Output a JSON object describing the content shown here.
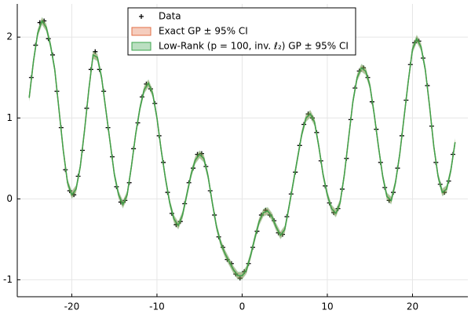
{
  "chart_data": {
    "type": "line",
    "xlim": [
      -26.4,
      26.5
    ],
    "ylim": [
      -1.21,
      2.41
    ],
    "xticks": [
      -20,
      -10,
      0,
      10,
      20
    ],
    "yticks": [
      -1,
      0,
      1,
      2
    ],
    "grid": true,
    "legend": "top",
    "x": [
      -25,
      -24.5,
      -24,
      -23.5,
      -23,
      -22.5,
      -22,
      -21.5,
      -21,
      -20.5,
      -20,
      -19.5,
      -19,
      -18.5,
      -18,
      -17.5,
      -17,
      -16.5,
      -16,
      -15.5,
      -15,
      -14.5,
      -14,
      -13.5,
      -13,
      -12.5,
      -12,
      -11.5,
      -11,
      -10.5,
      -10,
      -9.5,
      -9,
      -8.5,
      -8,
      -7.5,
      -7,
      -6.5,
      -6,
      -5.5,
      -5,
      -4.5,
      -4,
      -3.5,
      -3,
      -2.5,
      -2,
      -1.5,
      -1,
      -0.5,
      0,
      0.5,
      1,
      1.5,
      2,
      2.5,
      3,
      3.5,
      4,
      4.5,
      5,
      5.5,
      6,
      6.5,
      7,
      7.5,
      8,
      8.5,
      9,
      9.5,
      10,
      10.5,
      11,
      11.5,
      12,
      12.5,
      13,
      13.5,
      14,
      14.5,
      15,
      15.5,
      16,
      16.5,
      17,
      17.5,
      18,
      18.5,
      19,
      19.5,
      20,
      20.5,
      21,
      21.5,
      22,
      22.5,
      23,
      23.5,
      24,
      24.5,
      25
    ],
    "series": [
      {
        "name": "Data",
        "kind": "scatter",
        "color": "#000000",
        "x": [
          -24.75,
          -24.25,
          -23.75,
          -23.25,
          -22.75,
          -22.25,
          -21.75,
          -21.25,
          -20.75,
          -20.25,
          -19.75,
          -19.25,
          -18.75,
          -18.25,
          -17.75,
          -17.25,
          -16.75,
          -16.25,
          -15.75,
          -15.25,
          -14.75,
          -14.25,
          -13.75,
          -13.25,
          -12.75,
          -12.25,
          -11.75,
          -11.25,
          -10.75,
          -10.25,
          -9.75,
          -9.25,
          -8.75,
          -8.25,
          -7.75,
          -7.25,
          -6.75,
          -6.25,
          -5.75,
          -5.25,
          -4.75,
          -4.25,
          -3.75,
          -3.25,
          -2.75,
          -2.25,
          -1.75,
          -1.25,
          -0.75,
          -0.25,
          0.25,
          0.75,
          1.25,
          1.75,
          2.25,
          2.75,
          3.25,
          3.75,
          4.25,
          4.75,
          5.25,
          5.75,
          6.25,
          6.75,
          7.25,
          7.75,
          8.25,
          8.75,
          9.25,
          9.75,
          10.25,
          10.75,
          11.25,
          11.75,
          12.25,
          12.75,
          13.25,
          13.75,
          14.25,
          14.75,
          15.25,
          15.75,
          16.25,
          16.75,
          17.25,
          17.75,
          18.25,
          18.75,
          19.25,
          19.75,
          20.25,
          20.75,
          21.25,
          21.75,
          22.25,
          22.75,
          23.25,
          23.75,
          24.25,
          24.75
        ],
        "values": [
          1.5,
          1.9,
          2.18,
          2.2,
          1.98,
          1.78,
          1.33,
          0.88,
          0.36,
          0.1,
          0.05,
          0.28,
          0.6,
          1.12,
          1.6,
          1.82,
          1.6,
          1.33,
          0.88,
          0.52,
          0.15,
          -0.04,
          -0.02,
          0.2,
          0.62,
          0.94,
          1.26,
          1.42,
          1.36,
          1.18,
          0.78,
          0.45,
          0.08,
          -0.18,
          -0.32,
          -0.28,
          -0.06,
          0.2,
          0.38,
          0.55,
          0.56,
          0.4,
          0.1,
          -0.2,
          -0.47,
          -0.6,
          -0.75,
          -0.8,
          -0.93,
          -0.98,
          -0.9,
          -0.8,
          -0.6,
          -0.4,
          -0.2,
          -0.14,
          -0.2,
          -0.27,
          -0.42,
          -0.44,
          -0.22,
          0.06,
          0.33,
          0.66,
          0.92,
          1.05,
          1.0,
          0.82,
          0.47,
          0.16,
          -0.05,
          -0.17,
          -0.12,
          0.12,
          0.5,
          0.98,
          1.37,
          1.58,
          1.62,
          1.5,
          1.2,
          0.86,
          0.45,
          0.14,
          -0.02,
          0.08,
          0.38,
          0.78,
          1.22,
          1.66,
          1.93,
          1.95,
          1.74,
          1.4,
          0.9,
          0.45,
          0.18,
          0.08,
          0.22,
          0.55
        ]
      },
      {
        "name": "Exact GP ± 95% CI",
        "kind": "band",
        "color": "#e26f46",
        "ci": 0.04,
        "values": [
          1.25,
          1.7,
          2.05,
          2.2,
          2.12,
          1.9,
          1.6,
          1.1,
          0.6,
          0.2,
          0.05,
          0.12,
          0.4,
          0.85,
          1.35,
          1.78,
          1.75,
          1.5,
          1.1,
          0.7,
          0.3,
          0.05,
          -0.07,
          0.05,
          0.4,
          0.8,
          1.12,
          1.35,
          1.43,
          1.3,
          1.0,
          0.6,
          0.25,
          -0.05,
          -0.25,
          -0.33,
          -0.2,
          0.05,
          0.3,
          0.48,
          0.55,
          0.5,
          0.28,
          -0.05,
          -0.35,
          -0.55,
          -0.68,
          -0.78,
          -0.88,
          -0.95,
          -0.95,
          -0.88,
          -0.7,
          -0.48,
          -0.28,
          -0.17,
          -0.15,
          -0.22,
          -0.35,
          -0.45,
          -0.38,
          -0.1,
          0.2,
          0.5,
          0.8,
          1.0,
          1.05,
          0.95,
          0.65,
          0.3,
          0.05,
          -0.12,
          -0.18,
          -0.05,
          0.3,
          0.75,
          1.2,
          1.5,
          1.62,
          1.58,
          1.4,
          1.05,
          0.65,
          0.28,
          0.03,
          -0.02,
          0.2,
          0.55,
          1.0,
          1.45,
          1.85,
          1.98,
          1.88,
          1.6,
          1.15,
          0.65,
          0.28,
          0.08,
          0.12,
          0.35,
          0.7
        ]
      },
      {
        "name": "Low-Rank (p = 100, inv. ℓ₂) GP ± 95% CI",
        "kind": "band",
        "color": "#3da44d",
        "ci": 0.05,
        "values": [
          1.25,
          1.7,
          2.05,
          2.2,
          2.12,
          1.9,
          1.6,
          1.1,
          0.6,
          0.2,
          0.05,
          0.12,
          0.4,
          0.85,
          1.35,
          1.78,
          1.75,
          1.5,
          1.1,
          0.7,
          0.3,
          0.05,
          -0.07,
          0.05,
          0.4,
          0.8,
          1.12,
          1.35,
          1.43,
          1.3,
          1.0,
          0.6,
          0.25,
          -0.05,
          -0.25,
          -0.33,
          -0.2,
          0.05,
          0.3,
          0.48,
          0.55,
          0.5,
          0.28,
          -0.05,
          -0.35,
          -0.55,
          -0.68,
          -0.78,
          -0.88,
          -0.95,
          -0.95,
          -0.88,
          -0.7,
          -0.48,
          -0.28,
          -0.17,
          -0.15,
          -0.22,
          -0.35,
          -0.45,
          -0.38,
          -0.1,
          0.2,
          0.5,
          0.8,
          1.0,
          1.05,
          0.95,
          0.65,
          0.3,
          0.05,
          -0.12,
          -0.18,
          -0.05,
          0.3,
          0.75,
          1.2,
          1.5,
          1.62,
          1.58,
          1.4,
          1.05,
          0.65,
          0.28,
          0.03,
          -0.02,
          0.2,
          0.55,
          1.0,
          1.45,
          1.85,
          1.98,
          1.88,
          1.6,
          1.15,
          0.65,
          0.28,
          0.08,
          0.12,
          0.35,
          0.7
        ]
      }
    ]
  }
}
